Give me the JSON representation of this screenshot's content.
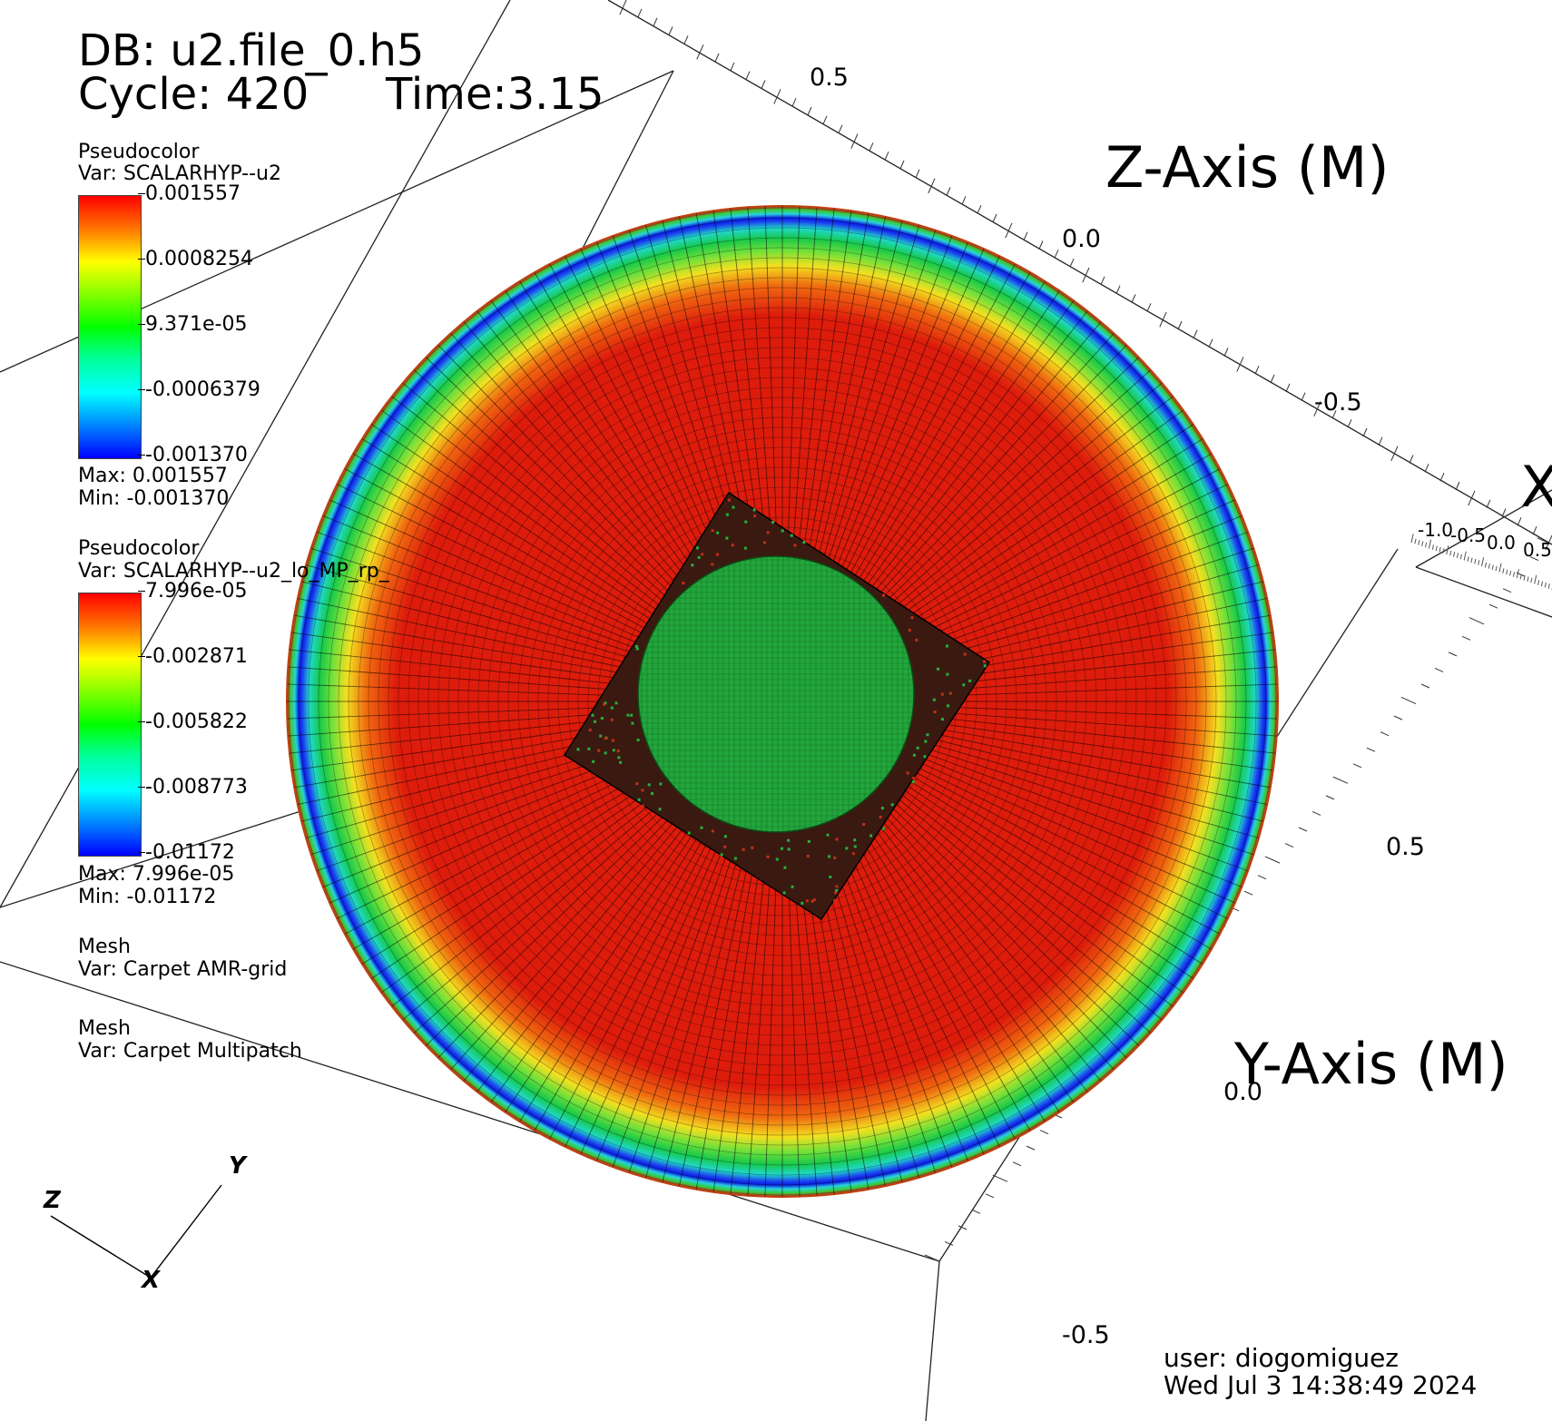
{
  "header": {
    "db": "DB: u2.file_0.h5",
    "cycle": "Cycle: 420",
    "time": "Time:3.15"
  },
  "legends": [
    {
      "plot": "Pseudocolor",
      "var": "Var: SCALARHYP--u2",
      "ticks": [
        "0.001557",
        "0.0008254",
        "9.371e-05",
        "-0.0006379",
        "-0.001370"
      ],
      "max": "Max:  0.001557",
      "min": "Min: -0.001370"
    },
    {
      "plot": "Pseudocolor",
      "var": "Var: SCALARHYP--u2_lo_MP_rp_",
      "ticks": [
        "7.996e-05",
        "-0.002871",
        "-0.005822",
        "-0.008773",
        "-0.01172"
      ],
      "max": "Max:  7.996e-05",
      "min": "Min: -0.01172"
    }
  ],
  "mesh_plots": [
    {
      "plot": "Mesh",
      "var": "Var: Carpet AMR-grid"
    },
    {
      "plot": "Mesh",
      "var": "Var: Carpet Multipatch"
    }
  ],
  "axes": {
    "z_title": "Z-Axis (M)",
    "y_title": "Y-Axis (M)",
    "x_title": "X",
    "z_ticks": [
      "0.5",
      "0.0",
      "-0.5"
    ],
    "x_ticks": [
      "-1.0",
      "-0.5",
      "0.0",
      "0.5"
    ],
    "y_ticks": [
      "0.5",
      "0.0",
      "-0.5"
    ]
  },
  "triad": {
    "x": "X",
    "y": "Y",
    "z": "Z"
  },
  "footer": {
    "user": "user: diogomiguez",
    "date": "Wed Jul  3 14:38:49 2024"
  },
  "colors": {
    "red": "#dd1c0c",
    "green": "#22a63c",
    "blue": "#0a1de0"
  }
}
